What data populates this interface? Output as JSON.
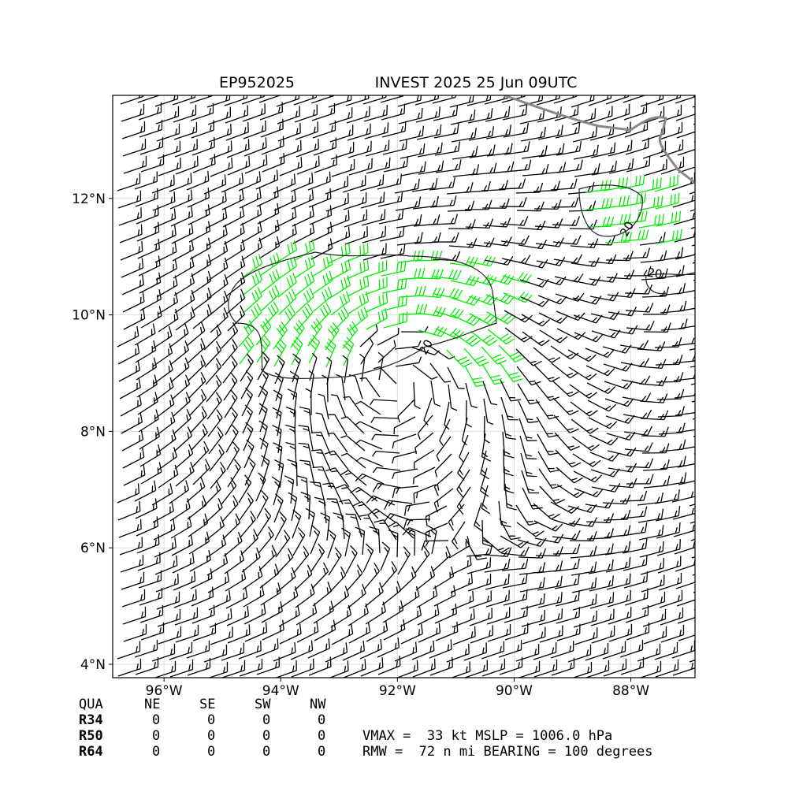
{
  "map": {
    "title_left": "EP952025",
    "title_right": "INVEST 2025 25 Jun 09UTC",
    "xlim": [
      -96.88,
      -86.9
    ],
    "ylim": [
      3.77,
      13.77
    ],
    "xticks": [
      {
        "value": -96,
        "label": "96°W"
      },
      {
        "value": -94,
        "label": "94°W"
      },
      {
        "value": -92,
        "label": "92°W"
      },
      {
        "value": -90,
        "label": "90°W"
      },
      {
        "value": -88,
        "label": "88°W"
      }
    ],
    "yticks": [
      {
        "value": 4,
        "label": "4°N"
      },
      {
        "value": 6,
        "label": "6°N"
      },
      {
        "value": 8,
        "label": "8°N"
      },
      {
        "value": 10,
        "label": "10°N"
      },
      {
        "value": 12,
        "label": "12°N"
      }
    ],
    "grid": true,
    "contour_level": 20
  },
  "table": {
    "header": [
      "QUA",
      "NE",
      "SE",
      "SW",
      "NW"
    ],
    "rows": [
      [
        "R34",
        "0",
        "0",
        "0",
        "0"
      ],
      [
        "R50",
        "0",
        "0",
        "0",
        "0"
      ],
      [
        "R64",
        "0",
        "0",
        "0",
        "0"
      ]
    ]
  },
  "summary": [
    "VMAX =  33 kt MSLP = 1006.0 hPa",
    "RMW =  72 n mi BEARING = 100 degrees"
  ]
}
